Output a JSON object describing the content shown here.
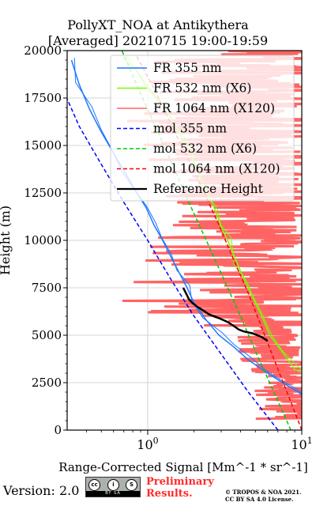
{
  "chart_data": {
    "type": "line",
    "title": "PollyXT_NOA at Antikythera",
    "subtitle": "[Averaged] 20210715 19:00-19:59",
    "xlabel": "Range-Corrected Signal [Mm^-1 * sr^-1]",
    "ylabel": "Height (m)",
    "xscale": "log",
    "xlim": [
      0.3,
      10
    ],
    "ylim": [
      0,
      20000
    ],
    "xticks": [
      1,
      10
    ],
    "xtick_labels": [
      "10^0",
      "10^1"
    ],
    "yticks": [
      0,
      2500,
      5000,
      7500,
      10000,
      12500,
      15000,
      17500,
      20000
    ],
    "ytick_labels": [
      "0",
      "2500",
      "5000",
      "7500",
      "10000",
      "12500",
      "15000",
      "17500",
      "20000"
    ],
    "grid": true,
    "legend_position": "upper-right",
    "series": [
      {
        "name": "FR 355 nm",
        "color": "#1f77ff",
        "style": "solid",
        "x": [
          11.5,
          9.5,
          7.5,
          6.0,
          4.5,
          3.6,
          2.9,
          2.4,
          2.0,
          1.8,
          1.6,
          1.4,
          1.25,
          1.1,
          0.98,
          0.85,
          0.72,
          0.6,
          0.5,
          0.42,
          0.36,
          0.32
        ],
        "y": [
          1500,
          2000,
          2500,
          3000,
          3700,
          4400,
          5000,
          5800,
          6700,
          7500,
          8300,
          9200,
          10000,
          10800,
          11700,
          12500,
          13500,
          14600,
          15700,
          16900,
          18200,
          19500
        ]
      },
      {
        "name": "FR 532 nm (X6)",
        "color": "#7cfc00",
        "style": "solid",
        "x": [
          12,
          9.0,
          7.5,
          6.2,
          5.5,
          4.8,
          4.3,
          3.9,
          3.6,
          3.3,
          3.0,
          2.8,
          2.6,
          2.4,
          2.2,
          2.0,
          1.8,
          1.6,
          1.4,
          1.2,
          1.0,
          0.85,
          0.7
        ],
        "y": [
          2700,
          3200,
          4100,
          5000,
          6000,
          7000,
          7800,
          8600,
          9300,
          10000,
          10700,
          11400,
          12000,
          12700,
          13400,
          14100,
          14900,
          15700,
          16500,
          17300,
          18100,
          18900,
          19600
        ]
      },
      {
        "name": "FR 1064 nm (X120)",
        "color": "#ff6464",
        "style": "solid",
        "x": [],
        "y": []
      },
      {
        "name": "mol 355 nm",
        "color": "#0000ff",
        "style": "dashed",
        "x": [
          7.0,
          4.5,
          3.0,
          2.0,
          1.4,
          1.0,
          0.7,
          0.5,
          0.36,
          0.28
        ],
        "y": [
          0,
          2000,
          4000,
          6000,
          8000,
          10000,
          12000,
          14000,
          16000,
          18000
        ]
      },
      {
        "name": "mol 532 nm (X6)",
        "color": "#00cc00",
        "style": "dashed",
        "x": [
          8.5,
          6.6,
          5.1,
          4.0,
          3.1,
          2.4,
          1.85,
          1.45,
          1.12,
          0.87,
          0.68
        ],
        "y": [
          0,
          2000,
          4000,
          6000,
          8000,
          10000,
          12000,
          14000,
          16000,
          18000,
          20000
        ]
      },
      {
        "name": "mol 1064 nm (X120)",
        "color": "#ff0000",
        "style": "dashed",
        "x": [
          10.0,
          8.2,
          6.7,
          5.5,
          4.5,
          3.6,
          2.9,
          2.3,
          1.8,
          1.4,
          1.1,
          0.85
        ],
        "y": [
          0,
          1800,
          3600,
          5400,
          7200,
          9000,
          10800,
          12600,
          14400,
          16200,
          18000,
          19700
        ]
      },
      {
        "name": "Reference Height",
        "color": "#000000",
        "style": "solid",
        "x": [
          6.0,
          5.5,
          4.8,
          4.2,
          3.9,
          3.6,
          3.3,
          2.9,
          2.5,
          2.3,
          2.1,
          1.95,
          1.85,
          1.8,
          1.75,
          1.7
        ],
        "y": [
          4700,
          4900,
          5100,
          5200,
          5300,
          5500,
          5700,
          5900,
          6100,
          6300,
          6500,
          6700,
          6900,
          7100,
          7300,
          7500
        ]
      }
    ]
  },
  "footer": {
    "version": "Version: 2.0",
    "license_badge": {
      "c1": "cc",
      "c2": "i",
      "c3": "S",
      "strip": "BY   SA"
    },
    "preliminary_line1": "Preliminary",
    "preliminary_line2": "Results.",
    "copyright_line1": "© TROPOS & NOA 2021.",
    "copyright_line2": "CC BY SA 4.0 License."
  }
}
